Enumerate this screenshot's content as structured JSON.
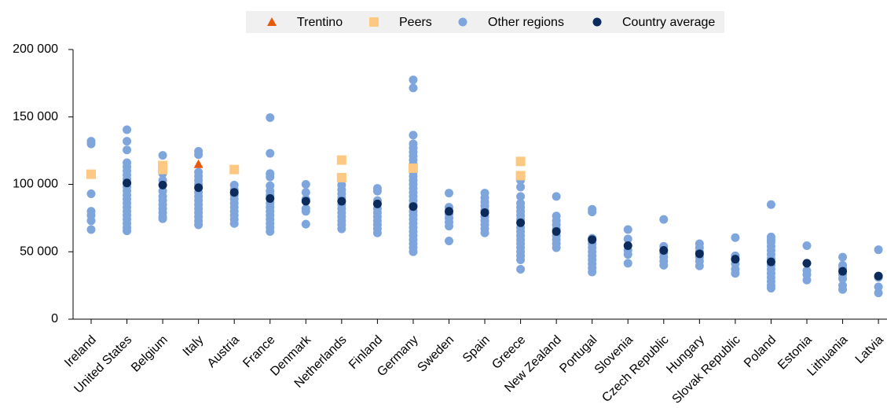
{
  "chart_data": {
    "type": "scatter",
    "categories": [
      "Ireland",
      "United States",
      "Belgium",
      "Italy",
      "Austria",
      "France",
      "Denmark",
      "Netherlands",
      "Finland",
      "Germany",
      "Sweden",
      "Spain",
      "Greece",
      "New Zealand",
      "Portugal",
      "Slovenia",
      "Czech Republic",
      "Hungary",
      "Slovak Republic",
      "Poland",
      "Estonia",
      "Lithuania",
      "Latvia"
    ],
    "ylim": [
      0,
      200000
    ],
    "yticks": [
      0,
      {
        "value": 50000,
        "label": "50 000"
      },
      {
        "value": 100000,
        "label": "100 000"
      },
      {
        "value": 150000,
        "label": "150 000"
      },
      {
        "value": 200000,
        "label": "200 000"
      }
    ],
    "legend": "top",
    "series": [
      {
        "name": "Trentino",
        "color": "#e8590c",
        "marker": "triangle",
        "values": [
          null,
          null,
          null,
          115000,
          null,
          null,
          null,
          null,
          null,
          null,
          null,
          null,
          null,
          null,
          null,
          null,
          null,
          null,
          null,
          null,
          null,
          null,
          null
        ]
      },
      {
        "name": "Peers",
        "color": "#fdc982",
        "marker": "square",
        "values": [
          [
            107500
          ],
          [],
          [
            114000,
            111000
          ],
          [],
          [
            111000
          ],
          [],
          [],
          [
            118000,
            105000
          ],
          [],
          [
            112000
          ],
          [],
          [],
          [
            117000,
            106500
          ],
          [],
          [],
          [],
          [],
          [],
          [],
          [],
          [],
          [],
          []
        ]
      },
      {
        "name": "Other regions",
        "color": "#7fa6dc",
        "marker": "circle",
        "values": [
          [
            132000,
            130000,
            93000,
            80000,
            77000,
            73000,
            66500
          ],
          [
            140500,
            132000,
            125500,
            116000,
            113000,
            110000,
            107000,
            104000,
            101000,
            98000,
            95000,
            92000,
            89000,
            86000,
            83000,
            80000,
            77000,
            74000,
            71000,
            68000,
            65500
          ],
          [
            121500,
            108000,
            103000,
            95000,
            91000,
            88000,
            85000,
            82000,
            79000,
            76000,
            74500
          ],
          [
            124500,
            122000,
            109000,
            106000,
            103000,
            100000,
            94000,
            91000,
            88000,
            85000,
            82000,
            79000,
            76000,
            73000,
            70000
          ],
          [
            99500,
            96000,
            92000,
            89000,
            86000,
            83000,
            80000,
            77000,
            74000,
            71000
          ],
          [
            149500,
            123000,
            108000,
            105500,
            99000,
            95000,
            92000,
            86000,
            83000,
            80000,
            77000,
            74000,
            71000,
            68000,
            65000
          ],
          [
            100000,
            94000,
            89000,
            82000,
            80000,
            70500
          ],
          [
            99500,
            96000,
            93000,
            90000,
            85000,
            82000,
            79000,
            76000,
            73000,
            70000,
            67000
          ],
          [
            97000,
            95000,
            88000,
            82000,
            79000,
            76000,
            73000,
            70000,
            67000,
            64000
          ],
          [
            177500,
            171500,
            136500,
            130000,
            127000,
            124000,
            121000,
            118000,
            115000,
            109000,
            106000,
            103000,
            100000,
            97000,
            94000,
            91000,
            88000,
            85000,
            80000,
            77000,
            74000,
            71000,
            68000,
            65000,
            62000,
            59000,
            56000,
            53000,
            50000
          ],
          [
            93500,
            83000,
            78000,
            75000,
            72000,
            69000,
            58000
          ],
          [
            93500,
            90000,
            87000,
            84000,
            81000,
            76000,
            73000,
            70000,
            67000,
            64000
          ],
          [
            103000,
            98000,
            91000,
            86000,
            83000,
            80000,
            77000,
            74000,
            68000,
            65000,
            62000,
            59000,
            56000,
            53000,
            50000,
            47000,
            44000,
            37000
          ],
          [
            91000,
            76500,
            73000,
            70000,
            67000,
            62000,
            59000,
            56000,
            53000
          ],
          [
            81500,
            79500,
            60000,
            56000,
            53000,
            50000,
            47000,
            44000,
            41000,
            38000,
            35000
          ],
          [
            66500,
            59500,
            51000,
            48000,
            41500
          ],
          [
            74000,
            54000,
            49000,
            46000,
            43000,
            40000
          ],
          [
            56000,
            53000,
            50000,
            46000,
            43000,
            39500
          ],
          [
            60500,
            47000,
            44000,
            41000,
            37000,
            34000
          ],
          [
            85000,
            61000,
            59000,
            57000,
            54000,
            51000,
            48000,
            45000,
            40000,
            37000,
            34000,
            31000,
            28000,
            25000,
            23000
          ],
          [
            54500,
            36000,
            33000,
            29000
          ],
          [
            46000,
            40000,
            38000,
            33000,
            30000,
            25000,
            22000
          ],
          [
            51500,
            31000,
            24000,
            19500
          ]
        ]
      },
      {
        "name": "Country average",
        "color": "#0b2b5c",
        "marker": "circle",
        "values": [
          null,
          101000,
          99500,
          97500,
          94000,
          89500,
          87500,
          87500,
          85500,
          83500,
          80000,
          79000,
          71500,
          65000,
          59000,
          54500,
          51000,
          48500,
          44500,
          42500,
          41500,
          35500,
          32000
        ]
      }
    ]
  }
}
